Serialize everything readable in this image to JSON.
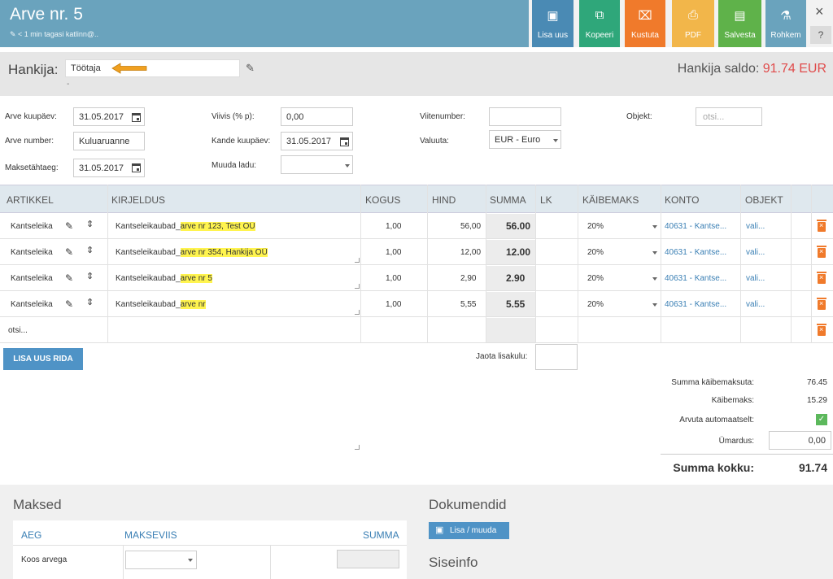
{
  "header": {
    "title": "Arve nr. 5",
    "subtitle": "< 1 min tagasi katlinn@..",
    "buttons": [
      {
        "id": "new",
        "label": "Lisa uus",
        "icon": "new-doc-icon",
        "color": "#4a8ab4"
      },
      {
        "id": "copy",
        "label": "Kopeeri",
        "icon": "copy-icon",
        "color": "#2fa77a"
      },
      {
        "id": "delete",
        "label": "Kustuta",
        "icon": "trash-icon",
        "color": "#f07a2b"
      },
      {
        "id": "pdf",
        "label": "PDF",
        "icon": "pdf-icon",
        "color": "#f2b64a"
      },
      {
        "id": "save",
        "label": "Salvesta",
        "icon": "save-icon",
        "color": "#5fb24a"
      },
      {
        "id": "more",
        "label": "Rohkem",
        "icon": "more-icon",
        "color": "#6aa3bd"
      }
    ],
    "close": "×",
    "help": "?"
  },
  "supplier": {
    "label": "Hankija:",
    "value": "Töötaja",
    "dash": "-",
    "saldo_label": "Hankija saldo:",
    "saldo_value": "91.74 EUR"
  },
  "form": {
    "invoice_date_label": "Arve kuupäev:",
    "invoice_date": "31.05.2017",
    "invoice_number_label": "Arve number:",
    "invoice_number": "Kuluaruanne",
    "due_date_label": "Maksetähtaeg:",
    "due_date": "31.05.2017",
    "penalty_label": "Viivis (% p):",
    "penalty": "0,00",
    "entry_date_label": "Kande kuupäev:",
    "entry_date": "31.05.2017",
    "warehouse_label": "Muuda ladu:",
    "warehouse": "",
    "ref_label": "Viitenumber:",
    "ref": "",
    "currency_label": "Valuuta:",
    "currency": "EUR - Euro",
    "object_label": "Objekt:",
    "object_placeholder": "otsi..."
  },
  "table": {
    "headers": [
      "ARTIKKEL",
      "KIRJELDUS",
      "KOGUS",
      "HIND",
      "SUMMA",
      "LK",
      "KÄIBEMAKS",
      "KONTO",
      "OBJEKT"
    ],
    "rows": [
      {
        "article": "Kantseleika",
        "desc_prefix": "Kantseleikaubad_",
        "desc_hl": "arve nr 123, Test OÜ",
        "qty": "1,00",
        "price": "56,00",
        "sum": "56.00",
        "vat": "20%",
        "account": "40631 - Kantse...",
        "object": "vali..."
      },
      {
        "article": "Kantseleika",
        "desc_prefix": "Kantseleikaubad_",
        "desc_hl": "arve nr 354, Hankija OÜ",
        "qty": "1,00",
        "price": "12,00",
        "sum": "12.00",
        "vat": "20%",
        "account": "40631 - Kantse...",
        "object": "vali..."
      },
      {
        "article": "Kantseleika",
        "desc_prefix": "Kantseleikaubad_",
        "desc_hl": "arve nr 5",
        "qty": "1,00",
        "price": "2,90",
        "sum": "2.90",
        "vat": "20%",
        "account": "40631 - Kantse...",
        "object": "vali..."
      },
      {
        "article": "Kantseleika",
        "desc_prefix": "Kantseleikaubad_",
        "desc_hl": "arve nr",
        "qty": "1,00",
        "price": "5,55",
        "sum": "5.55",
        "vat": "20%",
        "account": "40631 - Kantse...",
        "object": "vali..."
      }
    ],
    "search_placeholder": "otsi...",
    "add_row": "LISA UUS RIDA",
    "distribute_label": "Jaota lisakulu:"
  },
  "totals": {
    "net_label": "Summa käibemaksuta:",
    "net": "76.45",
    "vat_label": "Käibemaks:",
    "vat": "15.29",
    "auto_label": "Arvuta automaatselt:",
    "rounding_label": "Ümardus:",
    "rounding": "0,00",
    "total_label": "Summa kokku:",
    "total": "91.74"
  },
  "payments": {
    "title": "Maksed",
    "headers": [
      "AEG",
      "MAKSEVIIS",
      "SUMMA"
    ],
    "row_label": "Koos arvega"
  },
  "documents": {
    "title": "Dokumendid",
    "button": "Lisa / muuda"
  },
  "internal": {
    "title": "Siseinfo"
  }
}
